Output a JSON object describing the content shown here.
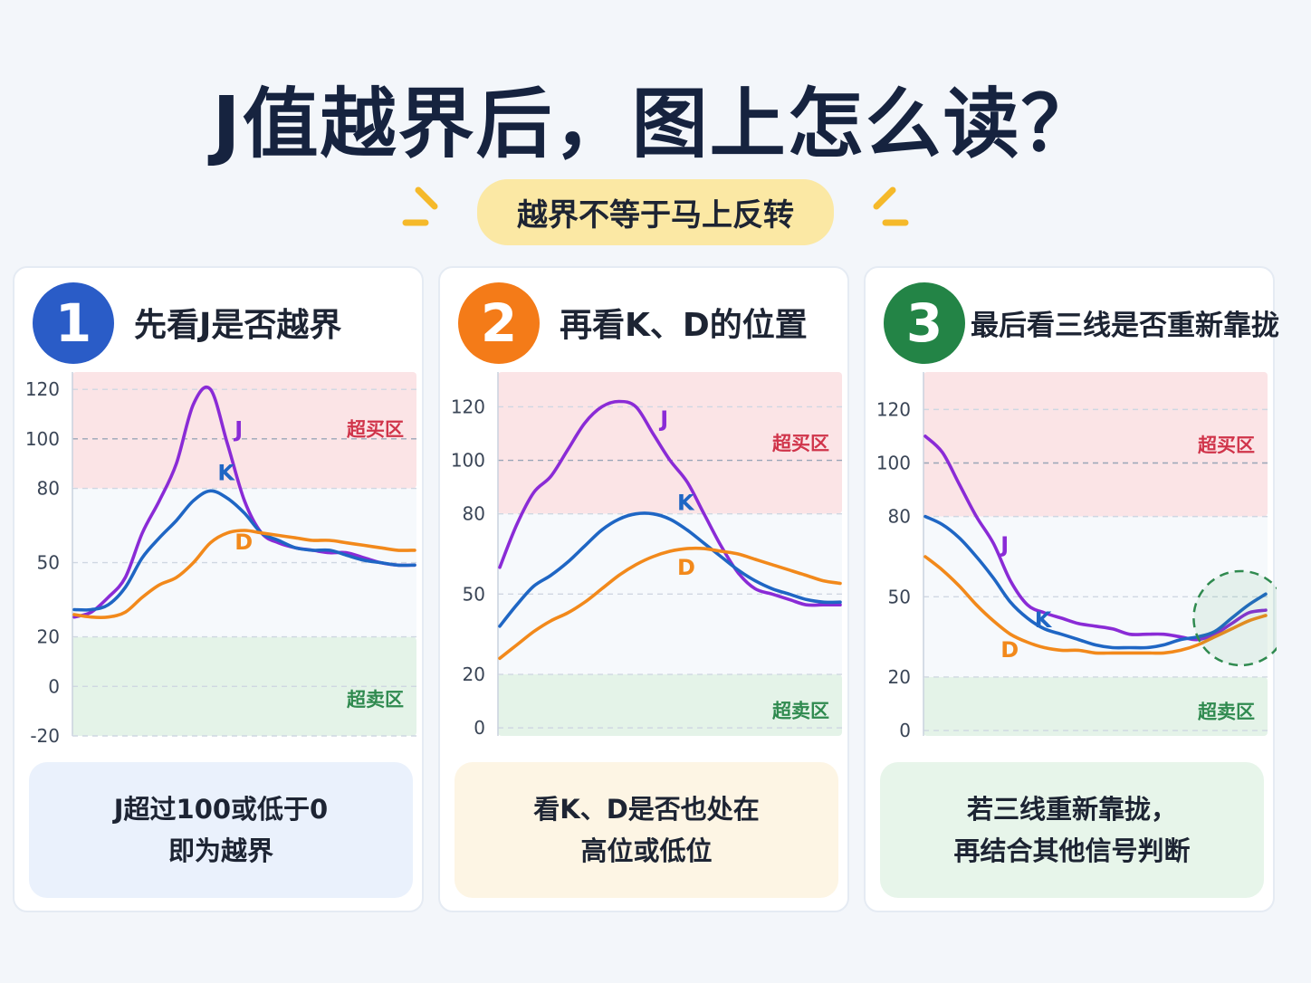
{
  "title": "J值越界后，图上怎么读？",
  "subtitle": "越界不等于马上反转",
  "colors": {
    "J": "#8a2bd6",
    "K": "#1f66c4",
    "D": "#f2891b",
    "overbought": "#fbe4e6",
    "oversold": "#e4f3e8"
  },
  "cards": [
    {
      "number": "1",
      "badge_color": "#2a5cc7",
      "heading": "先看J是否越界",
      "note_lines": [
        "J超过100或低于0",
        "即为越界"
      ],
      "note_bg": "#eaf1fc"
    },
    {
      "number": "2",
      "badge_color": "#f47b18",
      "heading": "再看K、D的位置",
      "note_lines": [
        "看K、D是否也处在",
        "高位或低位"
      ],
      "note_bg": "#fdf5e4"
    },
    {
      "number": "3",
      "badge_color": "#238446",
      "heading": "最后看三线是否重新靠拢",
      "note_lines": [
        "若三线重新靠拢，",
        "再结合其他信号判断"
      ],
      "note_bg": "#e7f5ea"
    }
  ],
  "chart_data": [
    {
      "type": "line",
      "y_ticks": [
        120,
        100,
        80,
        50,
        20,
        0,
        -20
      ],
      "ylim": [
        -20,
        127
      ],
      "zones": {
        "overbought_label": "超买区",
        "oversold_label": "超卖区",
        "overbought_from": 80,
        "oversold_to": 20
      },
      "x": [
        0,
        1,
        2,
        3,
        4,
        5,
        6,
        7,
        8,
        9,
        10,
        11,
        12,
        13,
        14,
        15,
        16,
        17,
        18,
        19,
        20
      ],
      "series": [
        {
          "name": "J",
          "values": [
            28,
            30,
            36,
            44,
            62,
            75,
            90,
            114,
            120,
            98,
            75,
            62,
            58,
            56,
            55,
            54,
            54,
            52,
            50,
            49,
            49
          ]
        },
        {
          "name": "K",
          "values": [
            31,
            31,
            33,
            40,
            52,
            60,
            67,
            75,
            79,
            76,
            70,
            62,
            59,
            56,
            55,
            55,
            53,
            51,
            50,
            49,
            49
          ]
        },
        {
          "name": "D",
          "values": [
            29,
            28,
            28,
            30,
            36,
            41,
            44,
            50,
            58,
            62,
            63,
            62,
            61,
            60,
            59,
            59,
            58,
            57,
            56,
            55,
            55
          ]
        }
      ]
    },
    {
      "type": "line",
      "y_ticks": [
        120,
        100,
        80,
        50,
        20,
        0
      ],
      "ylim": [
        -3,
        133
      ],
      "zones": {
        "overbought_label": "超买区",
        "oversold_label": "超卖区",
        "overbought_from": 80,
        "oversold_to": 20
      },
      "x": [
        0,
        1,
        2,
        3,
        4,
        5,
        6,
        7,
        8,
        9,
        10,
        11,
        12,
        13,
        14,
        15,
        16,
        17,
        18,
        19,
        20
      ],
      "series": [
        {
          "name": "J",
          "values": [
            60,
            76,
            88,
            94,
            104,
            114,
            120,
            122,
            120,
            110,
            100,
            92,
            80,
            68,
            58,
            52,
            50,
            48,
            46,
            46,
            46
          ]
        },
        {
          "name": "K",
          "values": [
            38,
            46,
            53,
            57,
            62,
            68,
            74,
            78,
            80,
            80,
            78,
            74,
            69,
            64,
            59,
            55,
            52,
            50,
            48,
            47,
            47
          ]
        },
        {
          "name": "D",
          "values": [
            26,
            31,
            36,
            40,
            43,
            47,
            52,
            57,
            61,
            64,
            66,
            67,
            67,
            66,
            65,
            63,
            61,
            59,
            57,
            55,
            54
          ]
        }
      ]
    },
    {
      "type": "line",
      "y_ticks": [
        120,
        100,
        80,
        50,
        20,
        0
      ],
      "ylim": [
        -2,
        134
      ],
      "zones": {
        "overbought_label": "超买区",
        "oversold_label": "超卖区",
        "overbought_from": 80,
        "oversold_to": 20
      },
      "x": [
        0,
        1,
        2,
        3,
        4,
        5,
        6,
        7,
        8,
        9,
        10,
        11,
        12,
        13,
        14,
        15,
        16,
        17,
        18,
        19,
        20
      ],
      "series": [
        {
          "name": "J",
          "values": [
            110,
            104,
            92,
            80,
            70,
            56,
            47,
            44,
            42,
            40,
            39,
            38,
            36,
            36,
            36,
            35,
            34,
            36,
            40,
            44,
            45
          ]
        },
        {
          "name": "K",
          "values": [
            80,
            77,
            72,
            65,
            57,
            48,
            42,
            38,
            36,
            34,
            32,
            31,
            31,
            31,
            32,
            34,
            35,
            37,
            42,
            47,
            51
          ]
        },
        {
          "name": "D",
          "values": [
            65,
            60,
            54,
            47,
            41,
            36,
            33,
            31,
            30,
            30,
            29,
            29,
            29,
            29,
            29,
            30,
            32,
            35,
            38,
            41,
            43
          ]
        }
      ]
    }
  ]
}
